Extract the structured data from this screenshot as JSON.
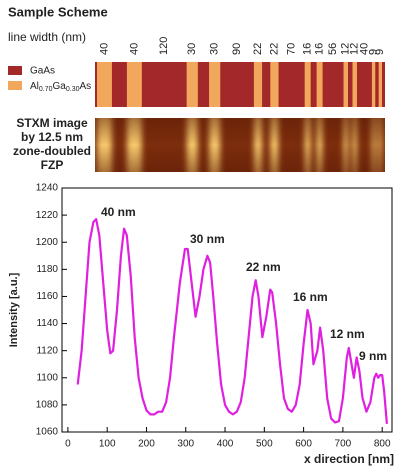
{
  "scheme": {
    "title": "Sample Scheme",
    "line_width_label": "line width (nm)",
    "line_widths": [
      40,
      40,
      120,
      30,
      30,
      90,
      22,
      22,
      70,
      16,
      16,
      56,
      12,
      12,
      40,
      9,
      9
    ],
    "legend": [
      {
        "name": "GaAs",
        "color": "#a2282a"
      },
      {
        "name_parts": [
          "Al",
          "0.70",
          "Ga",
          "0.30",
          "As"
        ],
        "color": "#f2a85c"
      }
    ]
  },
  "image_caption": [
    "STXM image",
    "by 12.5 nm",
    "zone-doubled",
    "FZP"
  ],
  "chart_data": {
    "type": "line",
    "xlabel": "x direction [nm]",
    "ylabel": "Intensity [a.u.]",
    "x": [
      25,
      35,
      45,
      55,
      65,
      72,
      80,
      90,
      100,
      108,
      115,
      125,
      135,
      143,
      150,
      160,
      170,
      180,
      190,
      200,
      210,
      220,
      230,
      240,
      250,
      260,
      270,
      285,
      298,
      305,
      315,
      325,
      335,
      345,
      355,
      362,
      370,
      380,
      390,
      400,
      410,
      420,
      430,
      440,
      450,
      460,
      470,
      478,
      485,
      495,
      505,
      515,
      520,
      530,
      540,
      550,
      560,
      570,
      580,
      590,
      600,
      610,
      618,
      625,
      635,
      642,
      650,
      660,
      670,
      680,
      690,
      700,
      710,
      715,
      722,
      728,
      735,
      742,
      750,
      760,
      770,
      780,
      785,
      790,
      795,
      800,
      805,
      812
    ],
    "series": [
      {
        "color": "#e020e0",
        "values": [
          1095,
          1120,
          1160,
          1200,
          1215,
          1217,
          1205,
          1170,
          1135,
          1118,
          1120,
          1150,
          1190,
          1210,
          1205,
          1175,
          1130,
          1100,
          1085,
          1076,
          1073,
          1073,
          1075,
          1075,
          1082,
          1100,
          1130,
          1170,
          1195,
          1195,
          1170,
          1145,
          1160,
          1180,
          1190,
          1185,
          1160,
          1125,
          1095,
          1080,
          1075,
          1073,
          1075,
          1082,
          1100,
          1130,
          1160,
          1172,
          1160,
          1130,
          1145,
          1165,
          1163,
          1140,
          1110,
          1085,
          1077,
          1075,
          1080,
          1095,
          1125,
          1150,
          1140,
          1110,
          1120,
          1137,
          1120,
          1085,
          1070,
          1067,
          1068,
          1085,
          1115,
          1122,
          1110,
          1100,
          1115,
          1105,
          1085,
          1075,
          1082,
          1100,
          1103,
          1100,
          1102,
          1102,
          1090,
          1066
        ]
      }
    ],
    "annotations": [
      "40 nm",
      "30 nm",
      "22 nm",
      "16 nm",
      "12 nm",
      "9 nm"
    ],
    "xlim": [
      -15,
      825
    ],
    "ylim": [
      1060,
      1240
    ],
    "xticks": [
      0,
      100,
      200,
      300,
      400,
      500,
      600,
      700,
      800
    ],
    "yticks": [
      1060,
      1080,
      1100,
      1120,
      1140,
      1160,
      1180,
      1200,
      1220,
      1240
    ]
  }
}
